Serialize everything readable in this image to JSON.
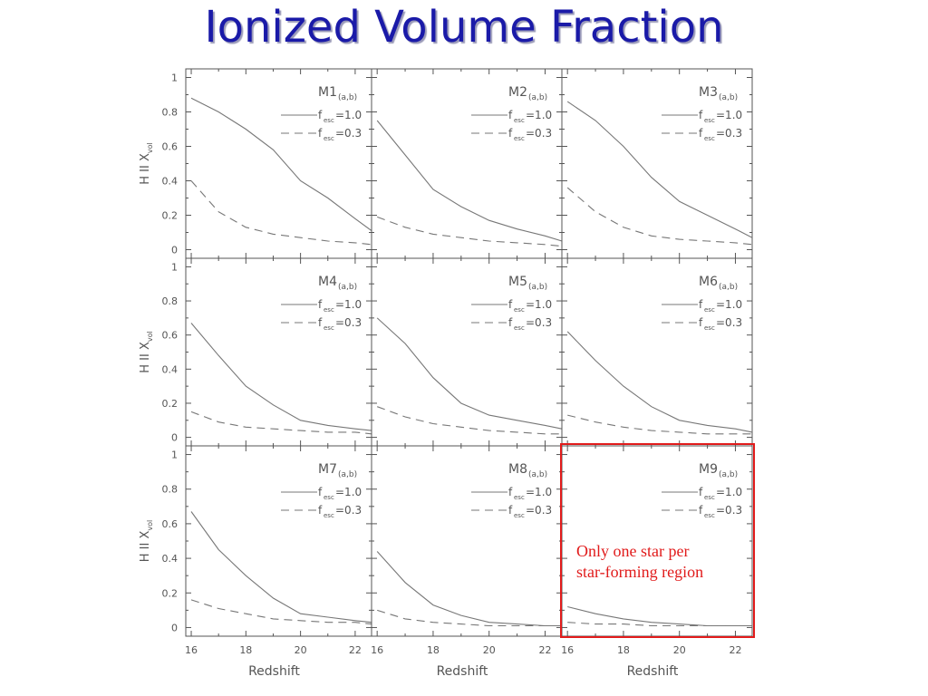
{
  "slide": {
    "title": "Ionized Volume Fraction"
  },
  "colors": {
    "title": "#1a1aa8",
    "annotation": "#e11b1b",
    "curve": "#777777"
  },
  "annotation": {
    "line1": "Only one star per",
    "line2": "star-forming region",
    "target_panel": "M9"
  },
  "chart_data": {
    "type": "line",
    "layout": "3x3 grid of panels",
    "xlabel": "Redshift",
    "ylabel_parts": [
      "H II X",
      "vol"
    ],
    "xlim": [
      15.8,
      22.6
    ],
    "ylim": [
      -0.05,
      1.05
    ],
    "xticks": [
      16,
      18,
      20,
      22
    ],
    "yticks": [
      0,
      0.2,
      0.4,
      0.6,
      0.8,
      1
    ],
    "x": [
      16,
      17,
      18,
      19,
      20,
      21,
      22,
      22.6
    ],
    "legend": [
      {
        "base": "f",
        "sub": "esc",
        "value": "=1.0",
        "style": "solid"
      },
      {
        "base": "f",
        "sub": "esc",
        "value": "=0.3",
        "style": "dashed"
      }
    ],
    "label_sub": "(a,b)",
    "panels": [
      {
        "name": "M1",
        "series": [
          {
            "name": "fesc=1.0",
            "values": [
              0.88,
              0.8,
              0.7,
              0.58,
              0.4,
              0.3,
              0.18,
              0.11
            ]
          },
          {
            "name": "fesc=0.3",
            "values": [
              0.4,
              0.22,
              0.13,
              0.09,
              0.07,
              0.05,
              0.04,
              0.03
            ]
          }
        ]
      },
      {
        "name": "M2",
        "series": [
          {
            "name": "fesc=1.0",
            "values": [
              0.75,
              0.55,
              0.35,
              0.25,
              0.17,
              0.12,
              0.08,
              0.05
            ]
          },
          {
            "name": "fesc=0.3",
            "values": [
              0.19,
              0.13,
              0.09,
              0.07,
              0.05,
              0.04,
              0.03,
              0.02
            ]
          }
        ]
      },
      {
        "name": "M3",
        "series": [
          {
            "name": "fesc=1.0",
            "values": [
              0.86,
              0.75,
              0.6,
              0.42,
              0.28,
              0.2,
              0.12,
              0.07
            ]
          },
          {
            "name": "fesc=0.3",
            "values": [
              0.36,
              0.22,
              0.13,
              0.08,
              0.06,
              0.05,
              0.04,
              0.03
            ]
          }
        ]
      },
      {
        "name": "M4",
        "series": [
          {
            "name": "fesc=1.0",
            "values": [
              0.67,
              0.48,
              0.3,
              0.19,
              0.1,
              0.07,
              0.05,
              0.04
            ]
          },
          {
            "name": "fesc=0.3",
            "values": [
              0.15,
              0.09,
              0.06,
              0.05,
              0.04,
              0.03,
              0.03,
              0.02
            ]
          }
        ]
      },
      {
        "name": "M5",
        "series": [
          {
            "name": "fesc=1.0",
            "values": [
              0.7,
              0.55,
              0.35,
              0.2,
              0.13,
              0.1,
              0.07,
              0.05
            ]
          },
          {
            "name": "fesc=0.3",
            "values": [
              0.18,
              0.12,
              0.08,
              0.06,
              0.04,
              0.03,
              0.02,
              0.02
            ]
          }
        ]
      },
      {
        "name": "M6",
        "series": [
          {
            "name": "fesc=1.0",
            "values": [
              0.62,
              0.45,
              0.3,
              0.18,
              0.1,
              0.07,
              0.05,
              0.03
            ]
          },
          {
            "name": "fesc=0.3",
            "values": [
              0.13,
              0.09,
              0.06,
              0.04,
              0.03,
              0.02,
              0.02,
              0.02
            ]
          }
        ]
      },
      {
        "name": "M7",
        "series": [
          {
            "name": "fesc=1.0",
            "values": [
              0.67,
              0.45,
              0.3,
              0.17,
              0.08,
              0.06,
              0.04,
              0.03
            ]
          },
          {
            "name": "fesc=0.3",
            "values": [
              0.16,
              0.11,
              0.08,
              0.05,
              0.04,
              0.03,
              0.03,
              0.02
            ]
          }
        ]
      },
      {
        "name": "M8",
        "series": [
          {
            "name": "fesc=1.0",
            "values": [
              0.44,
              0.26,
              0.13,
              0.07,
              0.03,
              0.02,
              0.01,
              0.01
            ]
          },
          {
            "name": "fesc=0.3",
            "values": [
              0.1,
              0.05,
              0.03,
              0.02,
              0.01,
              0.01,
              0.01,
              0.01
            ]
          }
        ]
      },
      {
        "name": "M9",
        "series": [
          {
            "name": "fesc=1.0",
            "values": [
              0.12,
              0.08,
              0.05,
              0.03,
              0.02,
              0.01,
              0.01,
              0.01
            ]
          },
          {
            "name": "fesc=0.3",
            "values": [
              0.03,
              0.02,
              0.02,
              0.01,
              0.01,
              0.01,
              0.01,
              0.01
            ]
          }
        ]
      }
    ]
  }
}
